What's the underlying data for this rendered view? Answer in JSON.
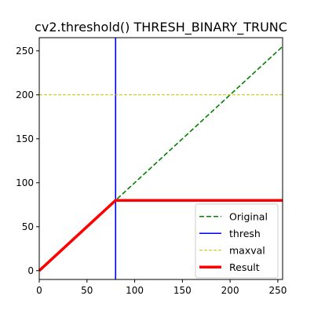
{
  "chart_data": {
    "type": "line",
    "title": "cv2.threshold() THRESH_BINARY_TRUNC",
    "xlabel": "",
    "ylabel": "",
    "xlim": [
      0,
      255
    ],
    "ylim": [
      -10,
      265
    ],
    "x_ticks": [
      0,
      50,
      100,
      150,
      200,
      250
    ],
    "y_ticks": [
      0,
      50,
      100,
      150,
      200,
      250
    ],
    "grid": false,
    "legend_position": "lower-right",
    "thresh": 80,
    "maxval": 200,
    "series": [
      {
        "name": "Original",
        "color": "#008000",
        "style": "dashed",
        "x": [
          0,
          255
        ],
        "y": [
          0,
          255
        ]
      },
      {
        "name": "thresh",
        "color": "#0000ff",
        "style": "vline",
        "x": [
          80,
          80
        ],
        "y": [
          -10,
          265
        ]
      },
      {
        "name": "maxval",
        "color": "#bfbf00",
        "style": "dashed-thin",
        "x": [
          0,
          255
        ],
        "y": [
          200,
          200
        ]
      },
      {
        "name": "Result",
        "color": "#ff0000",
        "style": "thick",
        "x": [
          0,
          80,
          255
        ],
        "y": [
          0,
          80,
          80
        ]
      }
    ]
  }
}
